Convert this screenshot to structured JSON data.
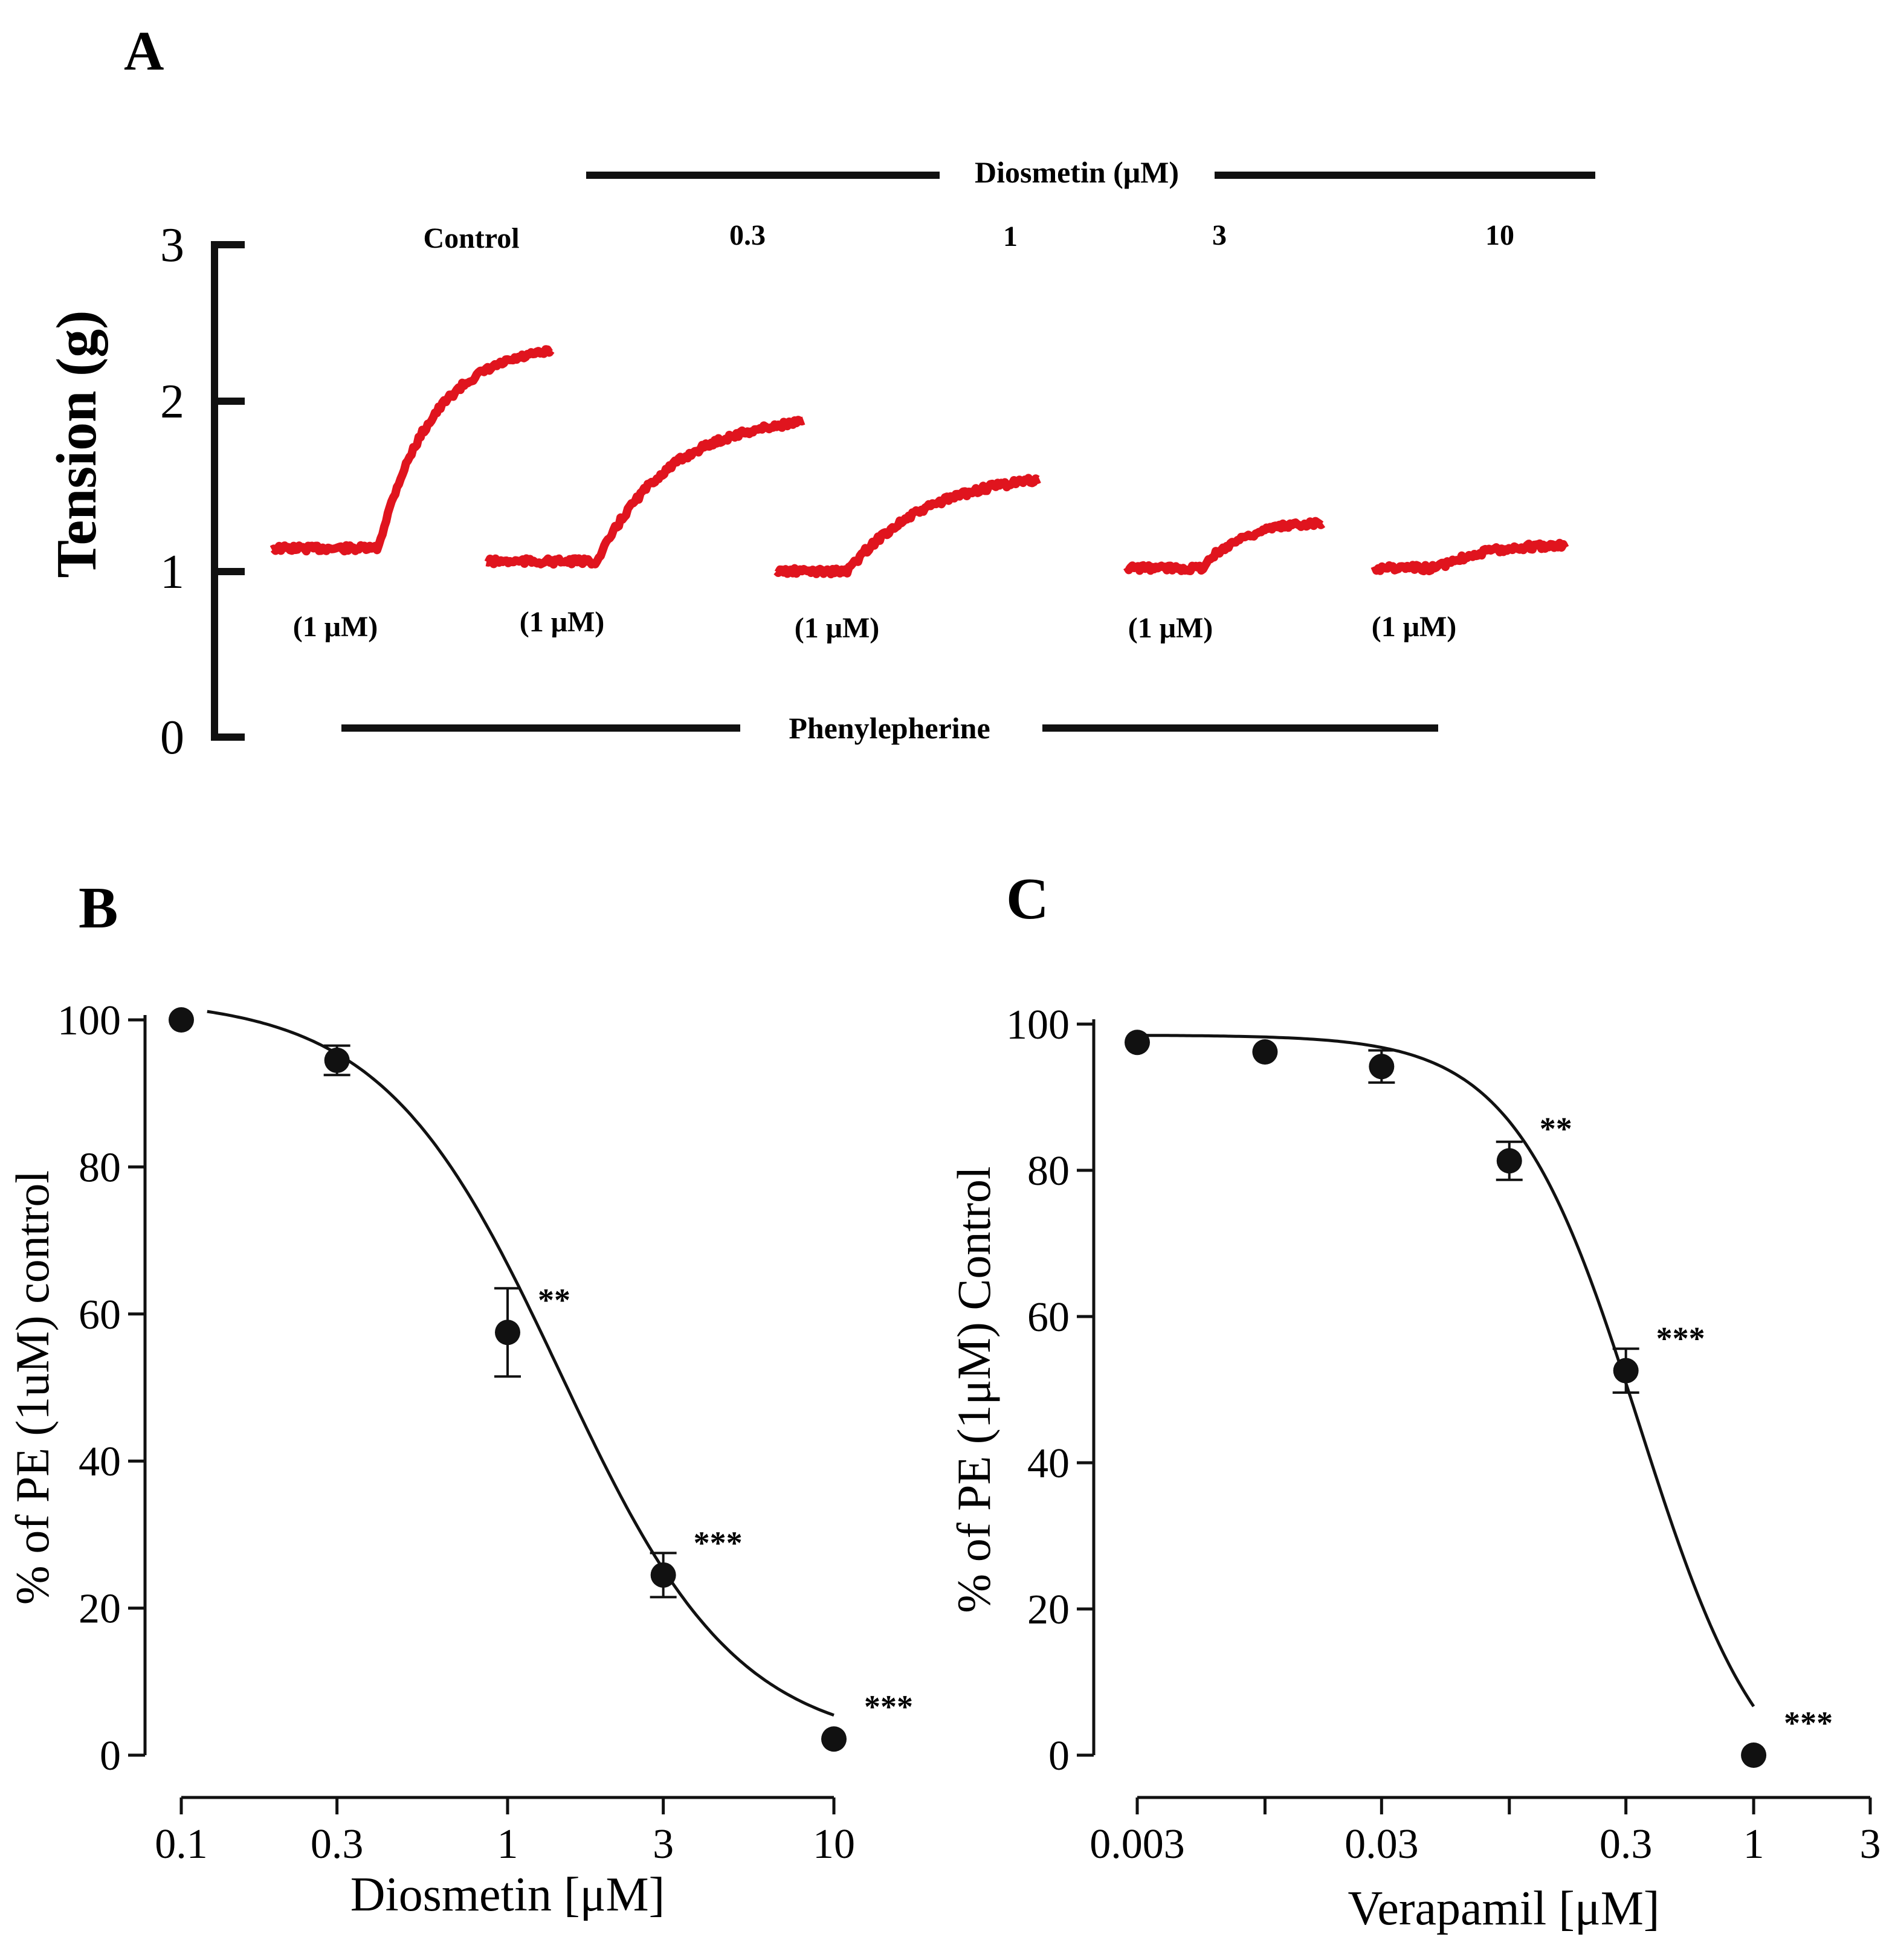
{
  "panels": {
    "A": {
      "letter": "A",
      "y_axis_label": "Tension (g)",
      "y_ticks": [
        "0",
        "1",
        "2",
        "3"
      ],
      "top_bar_label": "Diosmetin (μM)",
      "bottom_bar_label": "Phenylepherine",
      "traces": [
        {
          "label": "Control",
          "sublabel": "(1 μM)",
          "baseline": 1.15,
          "plateau": 2.35,
          "rise_fraction": 0.38,
          "curve": 0.95
        },
        {
          "label": "0.3",
          "sublabel": "(1 μM)",
          "baseline": 1.07,
          "plateau": 1.92,
          "rise_fraction": 0.35,
          "curve": 0.85
        },
        {
          "label": "1",
          "sublabel": "(1 μM)",
          "baseline": 1.01,
          "plateau": 1.57,
          "rise_fraction": 0.27,
          "curve": 0.7
        },
        {
          "label": "3",
          "sublabel": "(1 μM)",
          "baseline": 1.03,
          "plateau": 1.31,
          "rise_fraction": 0.38,
          "curve": 0.85
        },
        {
          "label": "10",
          "sublabel": "(1 μM)",
          "baseline": 1.03,
          "plateau": 1.17,
          "rise_fraction": 0.33,
          "curve": 0.85
        }
      ],
      "trace_color": "#e0141e"
    },
    "B": {
      "letter": "B"
    },
    "C": {
      "letter": "C"
    }
  },
  "chart_data": [
    {
      "panel": "B",
      "type": "scatter",
      "xscale": "log",
      "xlabel": "Diosmetin [μM]",
      "ylabel": "% of PE (1uM) control",
      "x_ticks": [
        0.1,
        0.3,
        1,
        3,
        10
      ],
      "x_tick_labels": [
        "0.1",
        "0.3",
        "1",
        "3",
        "10"
      ],
      "y_ticks": [
        0,
        20,
        40,
        60,
        80,
        100
      ],
      "y_tick_labels": [
        "0",
        "20",
        "40",
        "60",
        "80",
        "100"
      ],
      "xlim": [
        0.1,
        10
      ],
      "ylim": [
        0,
        100
      ],
      "points": [
        {
          "x": 0.1,
          "y": 100,
          "err": 0,
          "sig": ""
        },
        {
          "x": 0.3,
          "y": 94.5,
          "err": 2.0,
          "sig": ""
        },
        {
          "x": 1,
          "y": 57.5,
          "err": 6.0,
          "sig": "**"
        },
        {
          "x": 3,
          "y": 24.5,
          "err": 3.0,
          "sig": "***"
        },
        {
          "x": 10,
          "y": 2.2,
          "err": 0,
          "sig": "***"
        }
      ],
      "fit": {
        "top": 103,
        "bottom": 1,
        "ic50": 1.45,
        "hill": 1.6,
        "x_start": 0.12,
        "x_end": 10
      }
    },
    {
      "panel": "C",
      "type": "scatter",
      "xscale": "log",
      "xlabel": "Verapamil [μM]",
      "ylabel": "% of  PE (1μM) Control",
      "x_ticks": [
        0.003,
        0.01,
        0.03,
        0.1,
        0.3,
        1,
        3
      ],
      "x_tick_labels": [
        "0.003",
        "",
        "0.03",
        "",
        "0.3",
        "1",
        "3"
      ],
      "y_ticks": [
        0,
        20,
        40,
        60,
        80,
        100
      ],
      "y_tick_labels": [
        "0",
        "20",
        "40",
        "60",
        "80",
        "100"
      ],
      "xlim": [
        0.003,
        3
      ],
      "ylim": [
        0,
        100
      ],
      "points": [
        {
          "x": 0.003,
          "y": 97.5,
          "err": 0,
          "sig": ""
        },
        {
          "x": 0.01,
          "y": 96.2,
          "err": 0,
          "sig": ""
        },
        {
          "x": 0.03,
          "y": 94.2,
          "err": 2.2,
          "sig": ""
        },
        {
          "x": 0.1,
          "y": 81.3,
          "err": 2.6,
          "sig": "**"
        },
        {
          "x": 0.3,
          "y": 52.6,
          "err": 3.0,
          "sig": "***"
        },
        {
          "x": 1,
          "y": 0,
          "err": 0,
          "sig": "***"
        }
      ],
      "fit": {
        "top": 98.5,
        "bottom": -8,
        "ic50": 0.34,
        "hill": 1.7,
        "x_start": 0.003,
        "x_end": 1
      }
    }
  ]
}
